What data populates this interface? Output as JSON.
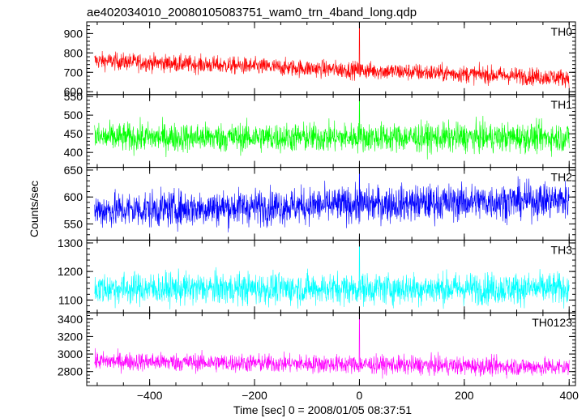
{
  "chart_data": {
    "type": "line",
    "title": "ae402034010_20080105083751_wam0_trn_4band_long.qdp",
    "xlabel": "Time [sec] 0 = 2008/01/05 08:37:51",
    "ylabel": "Counts/sec",
    "xlim": [
      -520,
      412
    ],
    "x_start": -505,
    "x_end": 400,
    "x_ticks": [
      -400,
      -200,
      0,
      200,
      400
    ],
    "x_tick_labels": [
      "−400",
      "−200",
      "0",
      "200",
      "400"
    ],
    "grid": false,
    "panels": [
      {
        "name": "TH0",
        "color": "#ff0000",
        "ylim": [
          585,
          960
        ],
        "y_ticks": [
          600,
          700,
          800,
          900
        ],
        "y_tick_labels": [
          "600",
          "700",
          "800",
          "900"
        ],
        "trend_start": 760,
        "trend_end": 672,
        "noise": 32,
        "spike_time": 0,
        "spike_value": 960
      },
      {
        "name": "TH1",
        "color": "#00ff00",
        "ylim": [
          360,
          555
        ],
        "y_ticks": [
          400,
          450,
          500,
          550
        ],
        "y_tick_labels": [
          "400",
          "450",
          "500",
          "550"
        ],
        "trend_start": 440,
        "trend_end": 440,
        "noise": 28,
        "spike_time": 0,
        "spike_value": 545
      },
      {
        "name": "TH2",
        "color": "#0000ff",
        "ylim": [
          520,
          655
        ],
        "y_ticks": [
          550,
          600,
          650
        ],
        "y_tick_labels": [
          "550",
          "600",
          "650"
        ],
        "trend_start": 575,
        "trend_end": 595,
        "noise": 24,
        "spike_time": 0,
        "spike_value": 650
      },
      {
        "name": "TH3",
        "color": "#00ffff",
        "ylim": [
          1055,
          1310
        ],
        "y_ticks": [
          1100,
          1200,
          1300
        ],
        "y_tick_labels": [
          "1100",
          "1200",
          "1300"
        ],
        "trend_start": 1140,
        "trend_end": 1140,
        "noise": 40,
        "spike_time": 0,
        "spike_value": 1300
      },
      {
        "name": "TH0123",
        "color": "#ff00ff",
        "ylim": [
          2640,
          3470
        ],
        "y_ticks": [
          2800,
          3000,
          3200,
          3400
        ],
        "y_tick_labels": [
          "2800",
          "3000",
          "3200",
          "3400"
        ],
        "trend_start": 2920,
        "trend_end": 2850,
        "noise": 75,
        "spike_time": 0,
        "spike_value": 3460
      }
    ]
  }
}
